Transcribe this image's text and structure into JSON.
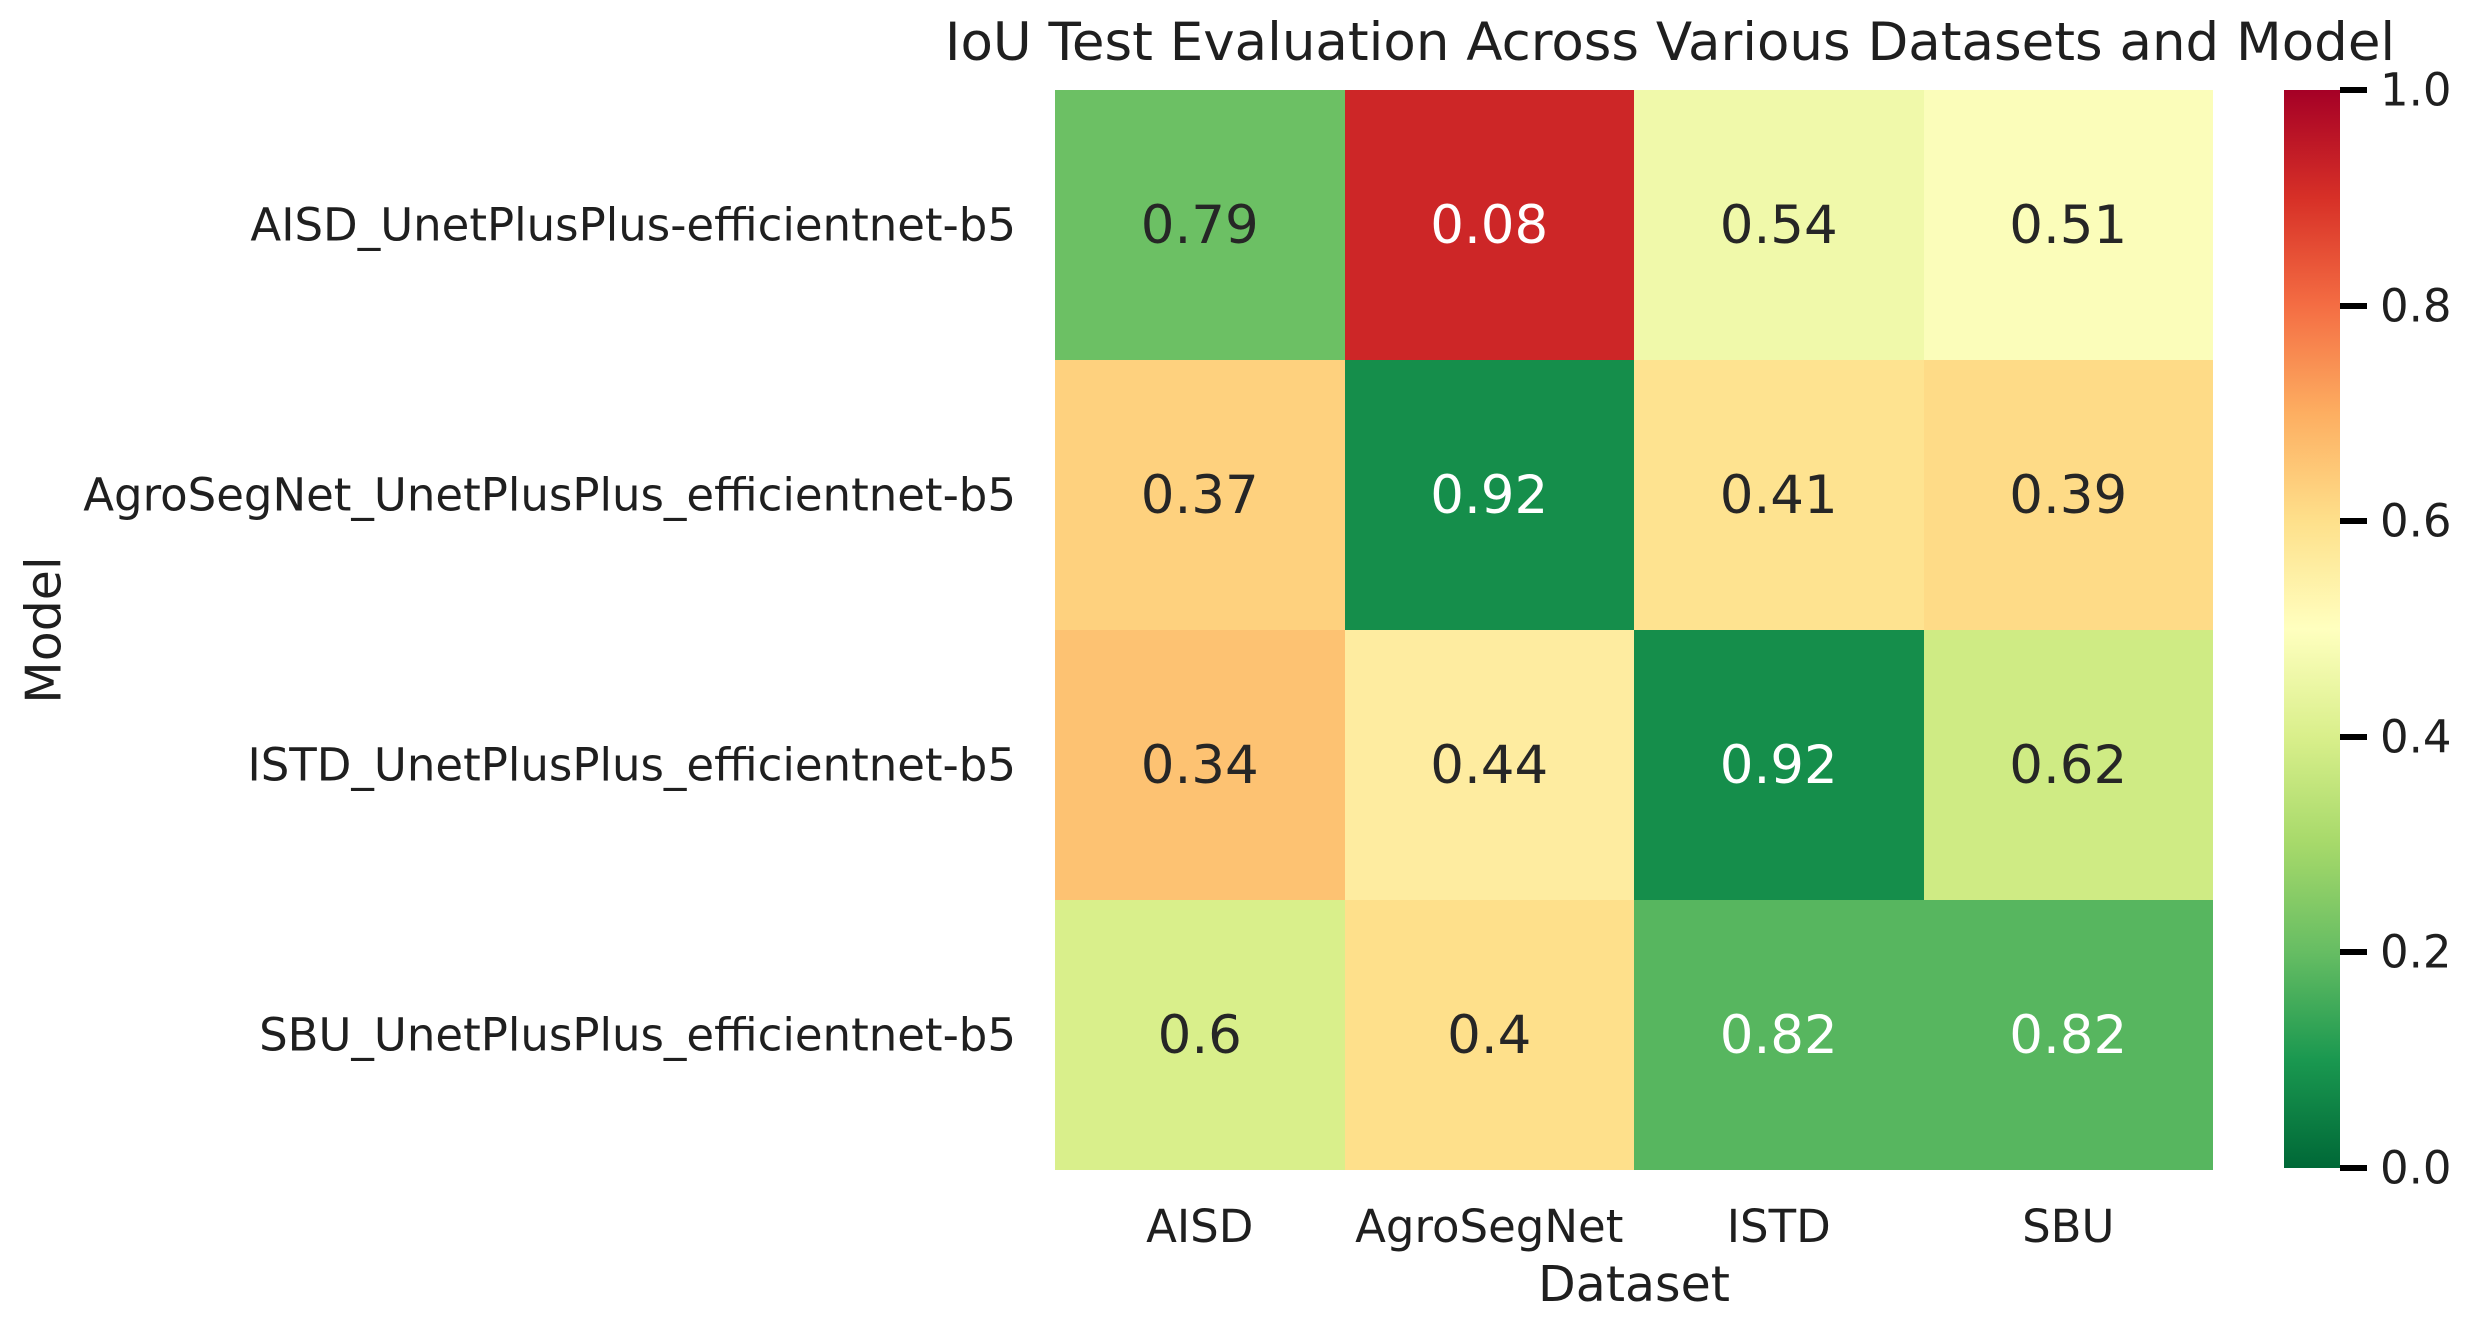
{
  "chart_data": {
    "type": "heatmap",
    "title": "IoU Test Evaluation Across Various Datasets and Model",
    "xlabel": "Dataset",
    "ylabel": "Model",
    "columns": [
      "AISD",
      "AgroSegNet",
      "ISTD",
      "SBU"
    ],
    "rows": [
      "AISD_UnetPlusPlus-efficientnet-b5",
      "AgroSegNet_UnetPlusPlus_efficientnet-b5",
      "ISTD_UnetPlusPlus_efficientnet-b5",
      "SBU_UnetPlusPlus_efficientnet-b5"
    ],
    "values": [
      [
        0.79,
        0.08,
        0.54,
        0.51
      ],
      [
        0.37,
        0.92,
        0.41,
        0.39
      ],
      [
        0.34,
        0.44,
        0.92,
        0.62
      ],
      [
        0.6,
        0.4,
        0.82,
        0.82
      ]
    ],
    "vmin": 0.0,
    "vmax": 1.0,
    "colormap": "RdYlGn",
    "colormap_colors": [
      "#a50026",
      "#d73027",
      "#f46d43",
      "#fdae61",
      "#fee08b",
      "#ffffbf",
      "#d9ef8b",
      "#a6d96a",
      "#66bd63",
      "#1a9850",
      "#006837"
    ],
    "annotation_dark_text_color": "#262626",
    "annotation_light_text_color": "#ffffff",
    "colorbar_ticks": [
      "1.0",
      "0.8",
      "0.6",
      "0.4",
      "0.2",
      "0.0"
    ],
    "legend_position": "right",
    "grid": "off"
  }
}
